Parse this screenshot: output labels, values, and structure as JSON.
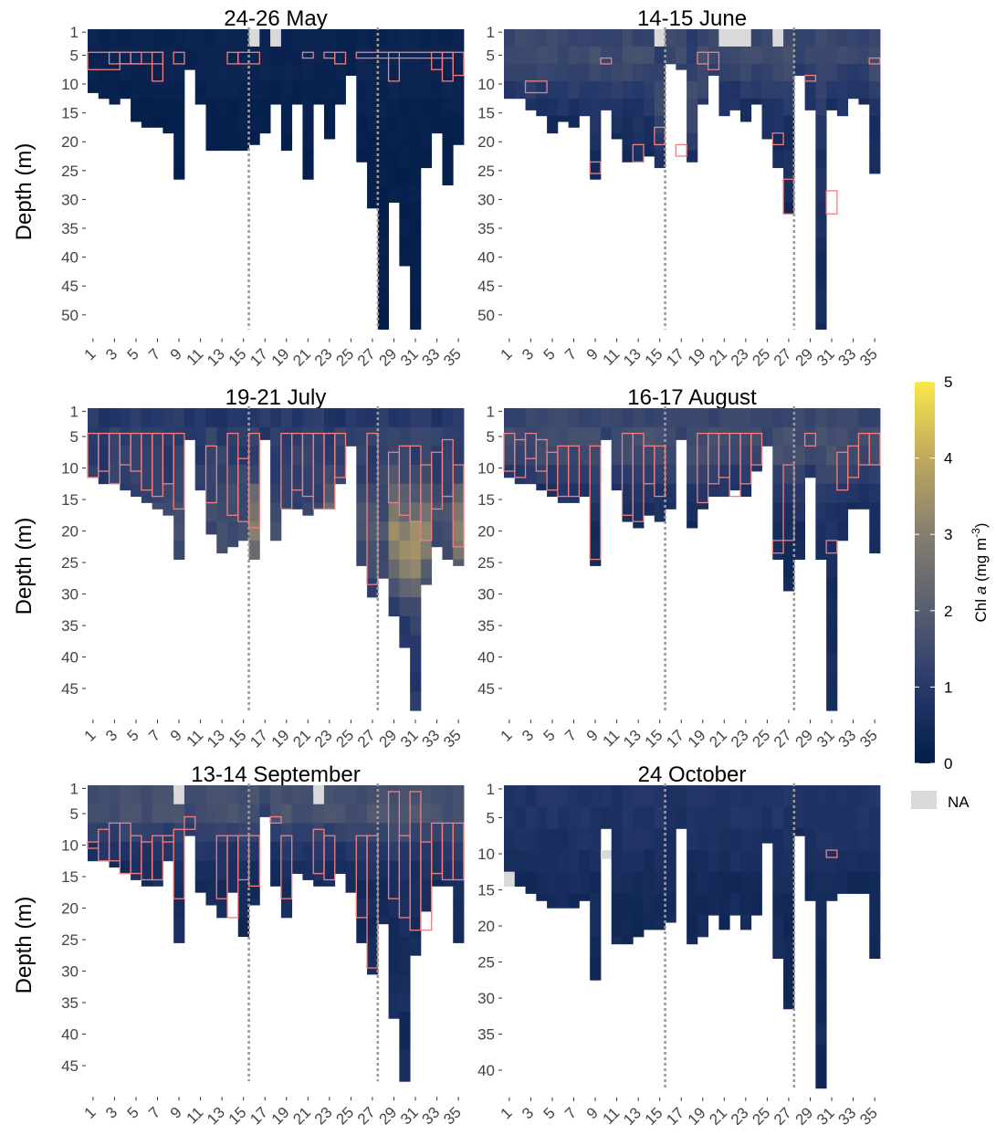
{
  "chart_data": {
    "type": "heatmap",
    "ylabel": "Depth (m)",
    "x_tick_labels": [
      "1",
      "3",
      "5",
      "7",
      "9",
      "11",
      "13",
      "15",
      "17",
      "19",
      "21",
      "23",
      "25",
      "27",
      "29",
      "31",
      "33",
      "35"
    ],
    "colorbar": {
      "label_main": "Chl ",
      "label_italic": "a",
      "label_unit": " (mg m",
      "label_sup": "-3",
      "label_close": ")",
      "ticks": [
        0,
        1,
        2,
        3,
        4,
        5
      ],
      "tick_labels": [
        "0",
        "1",
        "2",
        "3",
        "4",
        "5"
      ],
      "range": [
        0,
        5
      ],
      "low_color": "#021d49",
      "mid_color": "#5e6b78",
      "high_color": "#f9e84a",
      "na_label": "NA",
      "na_color": "#d9d9d9"
    },
    "dcm_box_color": "#f07f7f",
    "reference_lines_at_station": [
      15.5,
      27.5
    ],
    "panels": [
      {
        "title": "24-26 May",
        "y_tick_labels": [
          "1",
          "5",
          "10",
          "15",
          "20",
          "25",
          "30",
          "35",
          "40",
          "45",
          "50"
        ],
        "y_ticks": [
          1,
          5,
          10,
          15,
          20,
          25,
          30,
          35,
          40,
          45,
          50
        ],
        "ylim": [
          1,
          52
        ],
        "max_depth_per_station": [
          11,
          12,
          13,
          12,
          16,
          17,
          17,
          18,
          26,
          7,
          13,
          21,
          21,
          21,
          21,
          20,
          18,
          13,
          21,
          13,
          26,
          13,
          19,
          13,
          8,
          23,
          31,
          52,
          30,
          41,
          52,
          24,
          18,
          27,
          20
        ],
        "surface_value": 0.2,
        "mid_value": 0.15,
        "deep_value": 0.05,
        "max_value": 0.4,
        "max_depth": 6,
        "bloom_stations": [],
        "dcm_boxes": [
          [
            1,
            3,
            5,
            7
          ],
          [
            3,
            4,
            5,
            6
          ],
          [
            4,
            5,
            5,
            6
          ],
          [
            5,
            7,
            5,
            6
          ],
          [
            7,
            7,
            5,
            9
          ],
          [
            9,
            9,
            5,
            6
          ],
          [
            14,
            14,
            5,
            6
          ],
          [
            15,
            16,
            5,
            6
          ],
          [
            21,
            21,
            5,
            5
          ],
          [
            23,
            23,
            5,
            5
          ],
          [
            24,
            24,
            5,
            6
          ],
          [
            26,
            34,
            5,
            5
          ],
          [
            29,
            29,
            5,
            9
          ],
          [
            33,
            33,
            5,
            7
          ],
          [
            34,
            34,
            5,
            9
          ],
          [
            35,
            35,
            5,
            8
          ]
        ],
        "na_cells": [
          [
            16,
            1
          ],
          [
            18,
            1
          ]
        ]
      },
      {
        "title": "14-15 June",
        "y_tick_labels": [
          "1",
          "5",
          "10",
          "15",
          "20",
          "25",
          "30",
          "35",
          "40",
          "45",
          "50"
        ],
        "y_ticks": [
          1,
          5,
          10,
          15,
          20,
          25,
          30,
          35,
          40,
          45,
          50
        ],
        "ylim": [
          1,
          52
        ],
        "max_depth_per_station": [
          12,
          12,
          14,
          15,
          18,
          16,
          17,
          15,
          26,
          14,
          19,
          23,
          23,
          22,
          24,
          6,
          7,
          23,
          13,
          8,
          15,
          14,
          16,
          13,
          19,
          24,
          32,
          8,
          14,
          52,
          14,
          15,
          12,
          13,
          25
        ],
        "surface_value": 1.4,
        "mid_value": 0.8,
        "deep_value": 0.25,
        "max_value": 2.0,
        "max_depth": 5,
        "bloom_stations": [
          15,
          16,
          17,
          18,
          19,
          20
        ],
        "dcm_boxes": [
          [
            3,
            4,
            10,
            11
          ],
          [
            9,
            9,
            24,
            25
          ],
          [
            10,
            10,
            6,
            6
          ],
          [
            13,
            13,
            21,
            23
          ],
          [
            15,
            15,
            18,
            20
          ],
          [
            17,
            17,
            21,
            22
          ],
          [
            19,
            19,
            5,
            6
          ],
          [
            20,
            20,
            5,
            7
          ],
          [
            26,
            26,
            19,
            20
          ],
          [
            27,
            27,
            27,
            32
          ],
          [
            29,
            29,
            9,
            9
          ],
          [
            31,
            31,
            29,
            32
          ],
          [
            35,
            35,
            6,
            6
          ]
        ],
        "na_cells": [
          [
            15,
            1
          ],
          [
            21,
            1
          ],
          [
            22,
            1
          ],
          [
            23,
            1
          ],
          [
            26,
            1
          ]
        ]
      },
      {
        "title": "19-21 July",
        "y_tick_labels": [
          "1",
          "5",
          "10",
          "15",
          "20",
          "25",
          "30",
          "35",
          "40",
          "45"
        ],
        "y_ticks": [
          1,
          5,
          10,
          15,
          20,
          25,
          30,
          35,
          40,
          45
        ],
        "ylim": [
          1,
          48
        ],
        "max_depth_per_station": [
          11,
          12,
          12,
          13,
          14,
          15,
          16,
          17,
          24,
          5,
          13,
          20,
          23,
          22,
          21,
          24,
          5,
          21,
          16,
          16,
          17,
          16,
          16,
          12,
          6,
          25,
          30,
          27,
          33,
          38,
          48,
          28,
          22,
          24,
          25
        ],
        "surface_value": 0.6,
        "mid_value": 1.2,
        "deep_value": 0.7,
        "max_value": 4.5,
        "max_depth": 20,
        "bloom_stations": [
          16,
          23,
          29,
          30,
          31,
          32,
          35
        ],
        "dcm_boxes": [
          [
            1,
            1,
            5,
            11
          ],
          [
            2,
            2,
            5,
            10
          ],
          [
            3,
            3,
            5,
            12
          ],
          [
            4,
            4,
            5,
            9
          ],
          [
            5,
            5,
            5,
            10
          ],
          [
            6,
            6,
            5,
            13
          ],
          [
            7,
            7,
            5,
            14
          ],
          [
            8,
            8,
            5,
            12
          ],
          [
            9,
            9,
            5,
            16
          ],
          [
            12,
            12,
            7,
            15
          ],
          [
            14,
            14,
            5,
            17
          ],
          [
            15,
            15,
            9,
            18
          ],
          [
            16,
            16,
            5,
            19
          ],
          [
            19,
            19,
            5,
            16
          ],
          [
            20,
            20,
            5,
            13
          ],
          [
            21,
            21,
            5,
            14
          ],
          [
            22,
            22,
            5,
            16
          ],
          [
            23,
            23,
            5,
            16
          ],
          [
            24,
            24,
            5,
            11
          ],
          [
            27,
            27,
            5,
            28
          ],
          [
            29,
            29,
            8,
            15
          ],
          [
            30,
            30,
            7,
            17
          ],
          [
            31,
            31,
            7,
            18
          ],
          [
            32,
            32,
            10,
            21
          ],
          [
            33,
            33,
            8,
            16
          ],
          [
            34,
            34,
            6,
            14
          ],
          [
            35,
            35,
            10,
            22
          ]
        ],
        "na_cells": []
      },
      {
        "title": "16-17 August",
        "y_tick_labels": [
          "1",
          "5",
          "10",
          "15",
          "20",
          "25",
          "30",
          "35",
          "40",
          "45"
        ],
        "y_ticks": [
          1,
          5,
          10,
          15,
          20,
          25,
          30,
          35,
          40,
          45
        ],
        "ylim": [
          1,
          48
        ],
        "max_depth_per_station": [
          11,
          12,
          12,
          13,
          14,
          15,
          15,
          14,
          25,
          5,
          13,
          18,
          19,
          17,
          18,
          16,
          5,
          19,
          16,
          14,
          14,
          13,
          14,
          10,
          6,
          24,
          29,
          24,
          11,
          24,
          48,
          21,
          16,
          16,
          23
        ],
        "surface_value": 1.3,
        "mid_value": 0.7,
        "deep_value": 0.3,
        "max_value": 2.6,
        "max_depth": 6,
        "bloom_stations": [],
        "dcm_boxes": [
          [
            1,
            1,
            5,
            10
          ],
          [
            2,
            2,
            6,
            11
          ],
          [
            3,
            3,
            5,
            8
          ],
          [
            4,
            4,
            6,
            10
          ],
          [
            5,
            5,
            8,
            13
          ],
          [
            6,
            6,
            7,
            14
          ],
          [
            7,
            7,
            7,
            14
          ],
          [
            9,
            9,
            7,
            24
          ],
          [
            12,
            12,
            5,
            17
          ],
          [
            13,
            13,
            5,
            18
          ],
          [
            14,
            14,
            7,
            12
          ],
          [
            15,
            15,
            7,
            14
          ],
          [
            19,
            19,
            5,
            15
          ],
          [
            20,
            20,
            5,
            12
          ],
          [
            21,
            21,
            5,
            11
          ],
          [
            22,
            22,
            5,
            14
          ],
          [
            23,
            23,
            5,
            12
          ],
          [
            24,
            24,
            5,
            9
          ],
          [
            26,
            26,
            22,
            23
          ],
          [
            27,
            27,
            10,
            21
          ],
          [
            29,
            29,
            5,
            6
          ],
          [
            31,
            31,
            22,
            23
          ],
          [
            32,
            32,
            8,
            13
          ],
          [
            33,
            33,
            7,
            11
          ],
          [
            34,
            34,
            5,
            9
          ],
          [
            35,
            35,
            5,
            9
          ]
        ],
        "na_cells": []
      },
      {
        "title": "13-14 September",
        "y_tick_labels": [
          "1",
          "5",
          "10",
          "15",
          "20",
          "25",
          "30",
          "35",
          "40",
          "45"
        ],
        "y_ticks": [
          1,
          5,
          10,
          15,
          20,
          25,
          30,
          35,
          40,
          45
        ],
        "ylim": [
          1,
          48
        ],
        "max_depth_per_station": [
          12,
          12,
          13,
          14,
          15,
          16,
          16,
          12,
          25,
          8,
          17,
          19,
          21,
          17,
          24,
          19,
          5,
          16,
          21,
          14,
          15,
          16,
          16,
          14,
          17,
          25,
          30,
          22,
          37,
          47,
          27,
          20,
          16,
          16,
          25
        ],
        "surface_value": 1.2,
        "mid_value": 0.7,
        "deep_value": 0.3,
        "max_value": 3.0,
        "max_depth": 2,
        "bloom_stations": [],
        "dcm_boxes": [
          [
            1,
            1,
            10,
            10
          ],
          [
            2,
            2,
            8,
            12
          ],
          [
            3,
            3,
            7,
            12
          ],
          [
            4,
            4,
            7,
            14
          ],
          [
            5,
            5,
            9,
            14
          ],
          [
            6,
            6,
            10,
            15
          ],
          [
            7,
            7,
            9,
            15
          ],
          [
            8,
            8,
            9,
            9
          ],
          [
            9,
            9,
            8,
            18
          ],
          [
            10,
            10,
            6,
            7
          ],
          [
            13,
            13,
            9,
            18
          ],
          [
            14,
            14,
            9,
            21
          ],
          [
            15,
            15,
            9,
            15
          ],
          [
            16,
            16,
            9,
            16
          ],
          [
            18,
            18,
            6,
            6
          ],
          [
            19,
            19,
            9,
            18
          ],
          [
            22,
            22,
            8,
            14
          ],
          [
            23,
            23,
            9,
            15
          ],
          [
            26,
            26,
            9,
            21
          ],
          [
            27,
            27,
            9,
            29
          ],
          [
            29,
            29,
            2,
            18
          ],
          [
            30,
            30,
            9,
            21
          ],
          [
            31,
            31,
            2,
            23
          ],
          [
            32,
            32,
            10,
            23
          ],
          [
            33,
            33,
            7,
            14
          ],
          [
            34,
            34,
            7,
            15
          ],
          [
            35,
            35,
            7,
            15
          ]
        ],
        "na_cells": [
          [
            9,
            1
          ],
          [
            22,
            1
          ]
        ]
      },
      {
        "title": "24 October",
        "y_tick_labels": [
          "1",
          "5",
          "10",
          "15",
          "20",
          "25",
          "30",
          "35",
          "40"
        ],
        "y_ticks": [
          1,
          5,
          10,
          15,
          20,
          25,
          30,
          35,
          40
        ],
        "ylim": [
          1,
          42
        ],
        "max_depth_per_station": [
          14,
          14,
          15,
          16,
          17,
          17,
          17,
          16,
          27,
          6,
          22,
          22,
          21,
          20,
          20,
          19,
          6,
          22,
          21,
          18,
          20,
          18,
          20,
          18,
          8,
          24,
          31,
          7,
          16,
          42,
          16,
          15,
          15,
          15,
          24
        ],
        "surface_value": 0.8,
        "mid_value": 0.55,
        "deep_value": 0.35,
        "max_value": 1.0,
        "max_depth": 3,
        "bloom_stations": [],
        "dcm_boxes": [
          [
            31,
            31,
            10,
            10
          ]
        ],
        "na_cells": [
          [
            1,
            13
          ],
          [
            10,
            10
          ]
        ]
      }
    ]
  }
}
